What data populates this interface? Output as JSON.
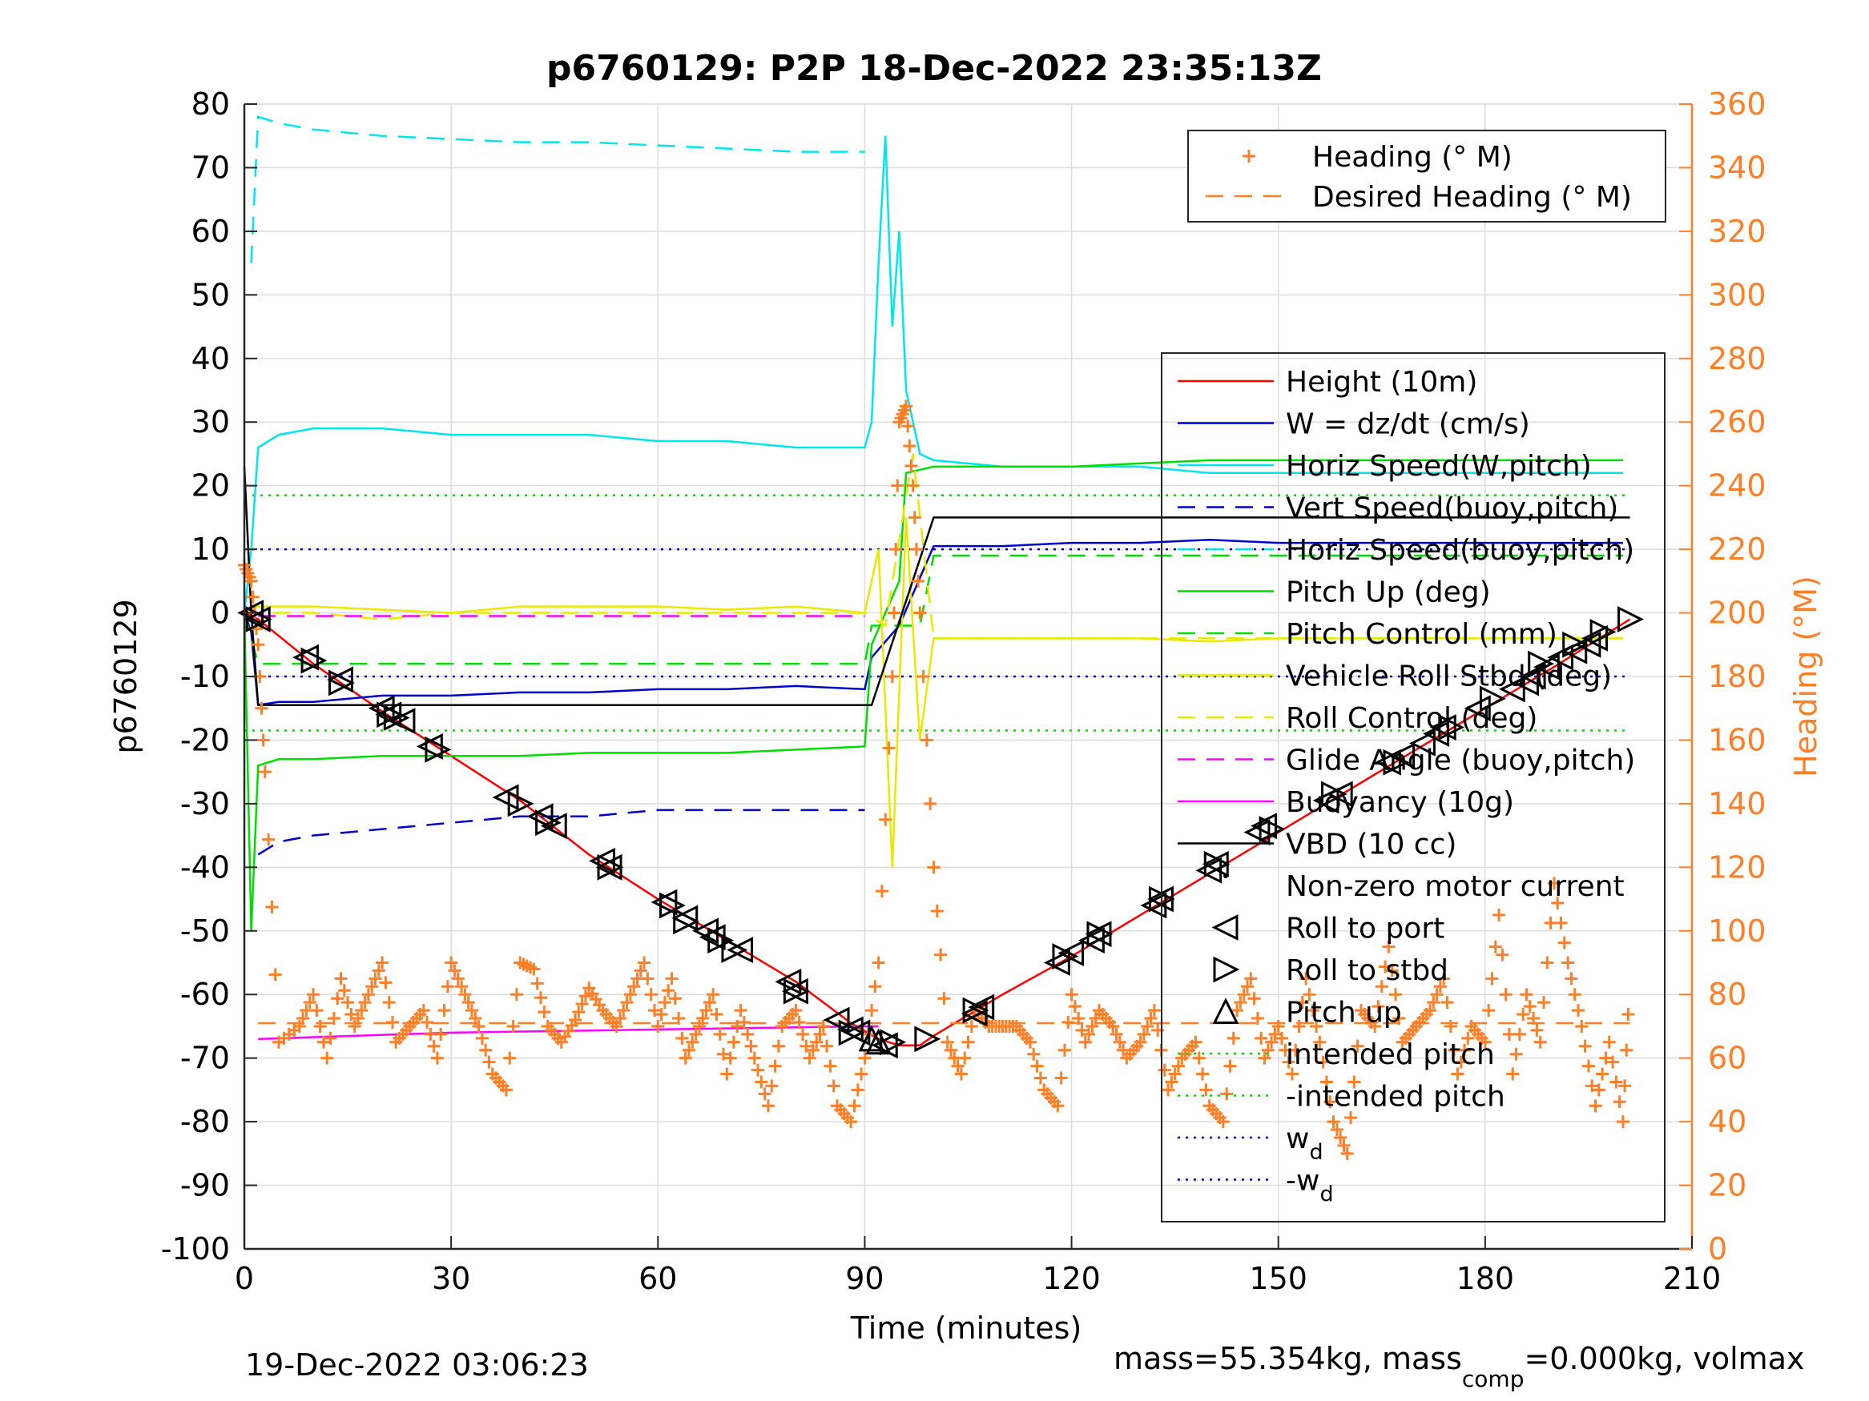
{
  "title": "p6760129: P2P 18-Dec-2022 23:35:13Z",
  "footer_left": "19-Dec-2022 03:06:23",
  "footer_right": {
    "prefix": "mass=55.354kg, mass",
    "sub": "comp",
    "suffix": "=0.000kg, volmax"
  },
  "chart_data": {
    "type": "line",
    "xlabel": "Time (minutes)",
    "ylabel_left": "p6760129",
    "ylabel_right": "Heading (°M)",
    "xlim": [
      0,
      210
    ],
    "ylim_left": [
      -100,
      80
    ],
    "ylim_right": [
      0,
      360
    ],
    "xticks": [
      0,
      30,
      60,
      90,
      120,
      150,
      180,
      210
    ],
    "yticks_left": [
      -100,
      -90,
      -80,
      -70,
      -60,
      -50,
      -40,
      -30,
      -20,
      -10,
      0,
      10,
      20,
      30,
      40,
      50,
      60,
      70,
      80
    ],
    "yticks_right": [
      0,
      20,
      40,
      60,
      80,
      100,
      120,
      140,
      160,
      180,
      200,
      220,
      240,
      260,
      280,
      300,
      320,
      340,
      360
    ],
    "grid": true,
    "legend_heading": {
      "placement": "top-right",
      "entries": [
        {
          "label": "Heading (° M)",
          "color": "#ff7f27",
          "style": "plus"
        },
        {
          "label": "Desired Heading (° M)",
          "color": "#ff7f27",
          "style": "dashed"
        }
      ]
    },
    "legend_main": {
      "placement": "right",
      "entries": [
        {
          "label": "Height (10m)",
          "color": "#ff0000",
          "style": "solid"
        },
        {
          "label": "W = dz/dt (cm/s)",
          "color": "#0000cc",
          "style": "solid"
        },
        {
          "label": "Horiz Speed(W,pitch)",
          "color": "#00e5ee",
          "style": "solid"
        },
        {
          "label": "Vert Speed(buoy,pitch)",
          "color": "#0000cc",
          "style": "dashed"
        },
        {
          "label": "Horiz Speed(buoy,pitch)",
          "color": "#00e5ee",
          "style": "dashed"
        },
        {
          "label": "Pitch Up (deg)",
          "color": "#00dd00",
          "style": "solid"
        },
        {
          "label": "Pitch Control (mm)",
          "color": "#00dd00",
          "style": "dashed"
        },
        {
          "label": "Vehicle Roll Stbd (deg)",
          "color": "#e8e800",
          "style": "solid"
        },
        {
          "label": "Roll Control (deg)",
          "color": "#e8e800",
          "style": "dashed"
        },
        {
          "label": "Glide Angle (buoy,pitch)",
          "color": "#ff00ff",
          "style": "dashed"
        },
        {
          "label": "Buoyancy (10g)",
          "color": "#ff00ff",
          "style": "solid"
        },
        {
          "label": "VBD (10 cc)",
          "color": "#000000",
          "style": "solid"
        },
        {
          "label": "Non-zero motor current",
          "color": "#000000",
          "style": "dot"
        },
        {
          "label": "Roll to port",
          "color": "#000000",
          "style": "tri-left"
        },
        {
          "label": "Roll to stbd",
          "color": "#000000",
          "style": "tri-right"
        },
        {
          "label": "Pitch up",
          "color": "#000000",
          "style": "tri-up"
        },
        {
          "label": "intended pitch",
          "color": "#00dd00",
          "style": "dotted"
        },
        {
          "label": "-intended pitch",
          "color": "#00dd00",
          "style": "dotted"
        },
        {
          "label": "w",
          "sub": "d",
          "color": "#0000cc",
          "style": "dotted"
        },
        {
          "label": "-w",
          "sub": "d",
          "color": "#0000cc",
          "style": "dotted"
        }
      ]
    },
    "colors": {
      "axis_right": "#ff7f27",
      "height": "#ff0000",
      "w": "#0000cc",
      "horiz": "#00e5ee",
      "pitch": "#00dd00",
      "roll": "#e8e800",
      "buoy": "#ff00ff",
      "vbd": "#000000",
      "heading": "#ff7f27"
    },
    "series": [
      {
        "name": "Height (10m)",
        "axis": "left",
        "x": [
          0,
          2,
          10,
          20,
          30,
          40,
          50,
          60,
          70,
          80,
          88,
          92,
          95,
          98,
          100,
          110,
          120,
          130,
          140,
          150,
          160,
          170,
          180,
          190,
          201
        ],
        "y": [
          0,
          -1,
          -8,
          -15.5,
          -22.5,
          -29.5,
          -38,
          -45,
          -51.5,
          -58,
          -64.5,
          -67,
          -68,
          -68,
          -66.5,
          -60,
          -54,
          -47.5,
          -41,
          -34.5,
          -28,
          -21.5,
          -15,
          -8.5,
          -1
        ]
      },
      {
        "name": "W = dz/dt (cm/s)",
        "axis": "left",
        "x": [
          0,
          1,
          2,
          5,
          10,
          20,
          30,
          40,
          50,
          60,
          70,
          80,
          90,
          91,
          95,
          100,
          110,
          120,
          130,
          140,
          150,
          160,
          170,
          180,
          190,
          200
        ],
        "y": [
          0,
          -3,
          -14.5,
          -14,
          -14,
          -13,
          -13,
          -12.5,
          -12.5,
          -12,
          -12,
          -11.5,
          -12,
          -7,
          -2,
          10.5,
          10.5,
          11,
          11,
          11.5,
          11,
          11,
          11,
          11,
          11,
          11
        ]
      },
      {
        "name": "Horiz Speed(W,pitch)",
        "axis": "left",
        "x": [
          0,
          1,
          2,
          5,
          10,
          20,
          30,
          40,
          50,
          60,
          70,
          80,
          90,
          91,
          92,
          93,
          94,
          95,
          96,
          97,
          98,
          100,
          110,
          120,
          130,
          140,
          150,
          160,
          170,
          180,
          190,
          200
        ],
        "y": [
          0,
          10,
          26,
          28,
          29,
          29,
          28,
          28,
          28,
          27,
          27,
          26,
          26,
          30,
          55,
          75,
          45,
          60,
          35,
          30,
          25,
          24,
          23,
          23,
          23,
          22,
          22,
          22,
          22,
          22,
          22,
          22
        ]
      },
      {
        "name": "Vert Speed(buoy,pitch)",
        "axis": "left",
        "x": [
          2,
          5,
          10,
          20,
          30,
          40,
          50,
          60,
          70,
          80,
          90
        ],
        "y": [
          -38,
          -36,
          -35,
          -34,
          -33,
          -32,
          -32,
          -31,
          -31,
          -31,
          -31
        ]
      },
      {
        "name": "Horiz Speed(buoy,pitch)",
        "axis": "left",
        "x": [
          1,
          2,
          5,
          10,
          20,
          30,
          40,
          50,
          60,
          70,
          80,
          90
        ],
        "y": [
          55,
          78,
          77,
          76,
          75,
          74.5,
          74,
          74,
          73.5,
          73,
          72.5,
          72.5
        ]
      },
      {
        "name": "Pitch Up (deg)",
        "axis": "left",
        "x": [
          0,
          1,
          2,
          5,
          10,
          20,
          30,
          40,
          50,
          60,
          70,
          80,
          90,
          91,
          95,
          96,
          100,
          110,
          120,
          130,
          140,
          150,
          160,
          170,
          180,
          190,
          200
        ],
        "y": [
          0,
          -50,
          -24,
          -23,
          -23,
          -22.5,
          -22.5,
          -22.5,
          -22,
          -22,
          -22,
          -21.5,
          -21,
          -5,
          5,
          22,
          23,
          23,
          23,
          23.5,
          24,
          24,
          24,
          24,
          24,
          24,
          24
        ]
      },
      {
        "name": "Pitch Control (mm)",
        "axis": "left",
        "x": [
          0,
          2,
          90,
          91,
          98,
          100,
          200
        ],
        "y": [
          0,
          -8,
          -8,
          -2,
          -2,
          9,
          9
        ]
      },
      {
        "name": "Vehicle Roll Stbd (deg)",
        "axis": "left",
        "x": [
          0,
          2,
          10,
          20,
          30,
          40,
          50,
          60,
          70,
          80,
          90,
          92,
          94,
          96,
          98,
          100,
          110,
          120,
          130,
          140,
          150,
          160,
          170,
          180,
          190,
          200
        ],
        "y": [
          0,
          1,
          1,
          0.5,
          0,
          1,
          1,
          1,
          0.5,
          1,
          0,
          10,
          -40,
          15,
          -20,
          -4,
          -4,
          -4,
          -4,
          -4.5,
          -4,
          -4,
          -4,
          -4,
          -4,
          -4
        ]
      },
      {
        "name": "Roll Control (deg)",
        "axis": "left",
        "x": [
          0,
          2,
          10,
          20,
          30,
          40,
          50,
          60,
          70,
          80,
          90,
          93,
          97,
          100,
          110,
          120,
          130,
          140,
          150,
          160,
          170,
          180,
          190,
          200
        ],
        "y": [
          0,
          0,
          0,
          -1,
          0,
          0,
          0,
          0,
          0,
          0,
          0,
          -2,
          25,
          -4,
          -4,
          -4,
          -4,
          -4,
          -4,
          -4,
          -4,
          -4,
          -4,
          -4
        ]
      },
      {
        "name": "Glide Angle (buoy,pitch)",
        "axis": "left",
        "x": [
          2,
          90
        ],
        "y": [
          -0.5,
          -0.5
        ]
      },
      {
        "name": "Buoyancy (10g)",
        "axis": "left",
        "x": [
          2,
          30,
          60,
          90,
          92
        ],
        "y": [
          -67,
          -66,
          -65.5,
          -65,
          -65
        ]
      },
      {
        "name": "VBD (10 cc)",
        "axis": "left",
        "x": [
          0,
          1,
          2,
          91,
          100,
          201
        ],
        "y": [
          23,
          0,
          -14.5,
          -14.5,
          15,
          15
        ]
      },
      {
        "name": "Heading (° M)",
        "axis": "right",
        "x": [
          0,
          1,
          2,
          3,
          5,
          8,
          10,
          12,
          14,
          16,
          18,
          20,
          22,
          24,
          26,
          28,
          30,
          32,
          34,
          36,
          38,
          40,
          42,
          44,
          46,
          48,
          50,
          52,
          54,
          56,
          58,
          60,
          62,
          64,
          66,
          68,
          70,
          72,
          74,
          76,
          78,
          80,
          82,
          84,
          86,
          88,
          90,
          92,
          94,
          95,
          96,
          97,
          98,
          100,
          102,
          104,
          106,
          108,
          110,
          112,
          114,
          116,
          118,
          120,
          122,
          124,
          126,
          128,
          130,
          132,
          134,
          136,
          138,
          140,
          142,
          144,
          146,
          148,
          150,
          152,
          154,
          156,
          158,
          160,
          162,
          164,
          166,
          168,
          170,
          172,
          174,
          176,
          178,
          180,
          182,
          184,
          186,
          188,
          190,
          192,
          194,
          196,
          198,
          200,
          201
        ],
        "y": [
          215,
          210,
          190,
          150,
          65,
          70,
          80,
          60,
          85,
          70,
          80,
          90,
          65,
          70,
          75,
          60,
          90,
          80,
          70,
          55,
          50,
          90,
          88,
          70,
          65,
          72,
          82,
          75,
          70,
          80,
          90,
          70,
          85,
          60,
          70,
          80,
          55,
          75,
          60,
          45,
          70,
          75,
          60,
          70,
          45,
          40,
          60,
          90,
          180,
          260,
          265,
          240,
          200,
          120,
          65,
          55,
          75,
          70,
          70,
          70,
          65,
          50,
          45,
          80,
          65,
          75,
          70,
          60,
          65,
          75,
          50,
          60,
          65,
          45,
          40,
          75,
          85,
          60,
          70,
          55,
          85,
          65,
          40,
          30,
          75,
          70,
          95,
          65,
          70,
          75,
          85,
          55,
          70,
          65,
          105,
          55,
          80,
          65,
          115,
          90,
          70,
          45,
          65,
          40,
          85
        ]
      },
      {
        "name": "Desired Heading (° M)",
        "axis": "right",
        "x": [
          2,
          201
        ],
        "y": [
          71,
          71
        ]
      }
    ],
    "reference_lines": [
      {
        "name": "intended pitch",
        "y": 18.5,
        "color": "#00dd00"
      },
      {
        "name": "-intended pitch",
        "y": -18.5,
        "color": "#00dd00"
      },
      {
        "name": "wd",
        "y": 10,
        "color": "#0000cc"
      },
      {
        "name": "-wd",
        "y": -10,
        "color": "#0000cc"
      }
    ],
    "markers": {
      "roll_to_port": {
        "x": [
          1,
          2,
          9,
          14,
          20,
          21,
          23,
          27,
          38,
          43,
          45,
          52,
          53,
          61,
          64,
          67,
          68,
          72,
          79,
          80,
          86,
          88,
          89,
          93,
          106,
          107,
          118,
          120,
          123,
          124,
          132,
          133,
          140,
          141,
          147,
          148,
          157,
          159,
          166,
          168,
          171,
          173,
          174,
          179,
          184,
          186,
          187,
          189,
          191,
          193,
          195,
          196
        ],
        "y": [
          0,
          -1,
          -7,
          -10.5,
          -15,
          -16,
          -17,
          -21,
          -29,
          -32,
          -33.5,
          -39,
          -40,
          -45.5,
          -48,
          -50,
          -51,
          -53,
          -58,
          -59.5,
          -64,
          -65.5,
          -66,
          -68,
          -63,
          -62,
          -55,
          -53.5,
          -51.5,
          -50.5,
          -46,
          -45,
          -40.5,
          -39.5,
          -34.5,
          -33.5,
          -29.5,
          -28.5,
          -23.5,
          -22.5,
          -20.5,
          -19,
          -18,
          -15,
          -12,
          -11,
          -10,
          -8.5,
          -7,
          -6,
          -5,
          -4
        ]
      },
      "roll_to_stbd": {
        "x": [
          2,
          10,
          14,
          21,
          22,
          28,
          40,
          44,
          53,
          62,
          64,
          69,
          71,
          80,
          88,
          94,
          99,
          106,
          119,
          124,
          133,
          141,
          149,
          158,
          167,
          175,
          181,
          188,
          193,
          197,
          201
        ],
        "y": [
          -1,
          -7.5,
          -11,
          -16,
          -16.5,
          -21.5,
          -30,
          -33,
          -40,
          -46,
          -48.5,
          -51.5,
          -53,
          -59.5,
          -66,
          -67.5,
          -67,
          -62.5,
          -54,
          -50.5,
          -45,
          -39.5,
          -34,
          -28.5,
          -23.5,
          -18,
          -13.5,
          -8,
          -5,
          -3,
          -1
        ]
      },
      "pitch_up": {
        "x": [
          91,
          92
        ],
        "y": [
          -67,
          -67.5
        ]
      }
    }
  }
}
